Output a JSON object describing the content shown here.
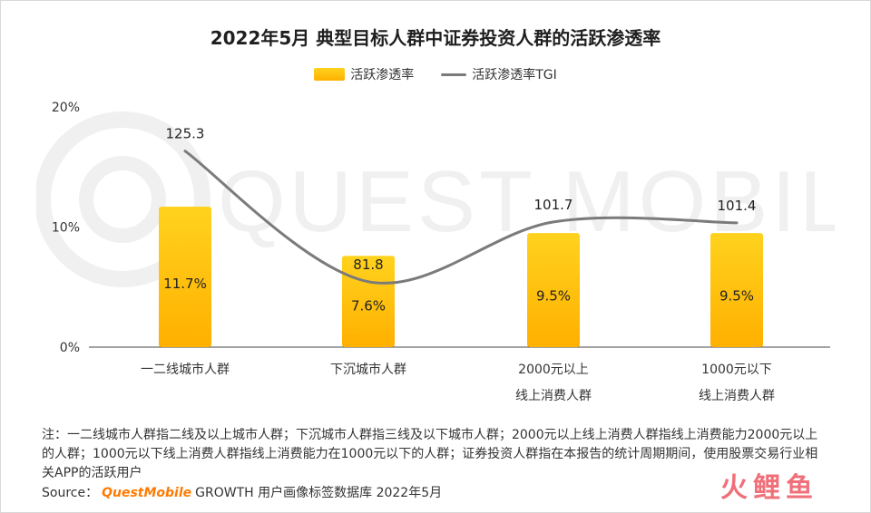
{
  "title": "2022年5月 典型目标人群中证券投资人群的活跃渗透率",
  "legend": {
    "bar_label": "活跃渗透率",
    "line_label": "活跃渗透率TGI"
  },
  "colors": {
    "bar_top": "#ffd21e",
    "bar_bottom": "#ffb000",
    "line": "#7b7b7b",
    "brand": "#ff7a00"
  },
  "chart_data": {
    "type": "bar",
    "categories": [
      [
        "一二线城市人群"
      ],
      [
        "下沉城市人群"
      ],
      [
        "2000元以上",
        "线上消费人群"
      ],
      [
        "1000元以下",
        "线上消费人群"
      ]
    ],
    "series": [
      {
        "name": "活跃渗透率",
        "type": "bar",
        "values": [
          11.7,
          7.6,
          9.5,
          9.5
        ],
        "labels": [
          "11.7%",
          "7.6%",
          "9.5%",
          "9.5%"
        ]
      },
      {
        "name": "活跃渗透率TGI",
        "type": "line",
        "values": [
          125.3,
          81.8,
          101.7,
          101.4
        ],
        "labels": [
          "125.3",
          "81.8",
          "101.7",
          "101.4"
        ]
      }
    ],
    "yticks": [
      "20%",
      "10%",
      "0%"
    ],
    "ylim": [
      0,
      20
    ],
    "tgi_range": [
      60,
      140
    ],
    "grid": false,
    "legend_position": "top-center"
  },
  "notes": "注：一二线城市人群指二线及以上城市人群；下沉城市人群指三线及以下城市人群；2000元以上线上消费人群指线上消费能力2000元以上的人群；1000元以下线上消费人群指线上消费能力在1000元以下的人群；证券投资人群指在本报告的统计周期期间，使用股票交易行业相关APP的活跃用户",
  "source": {
    "prefix": "Source：",
    "brand": "QuestMobile",
    "suffix": "GROWTH 用户画像标签数据库 2022年5月"
  },
  "watermark": "QUEST MOBILE",
  "corner_logo": "火鲤鱼"
}
